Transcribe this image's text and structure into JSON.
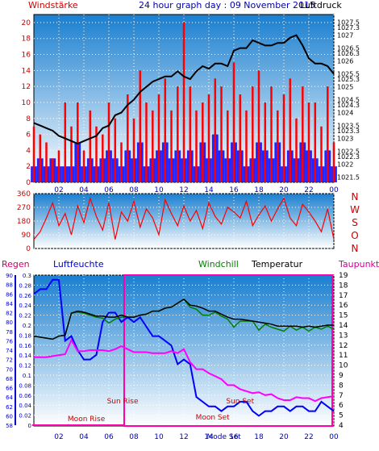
{
  "header": {
    "left_label": "Windstärke",
    "center_title": "24 hour graph day : 09 November 2015",
    "right_label": "Luftdruck"
  },
  "colors": {
    "title_blue": "#0000aa",
    "title_red": "#cc0000",
    "wind_red": "#ff0000",
    "gust_blue": "#0000ff",
    "pressure_black": "#000000",
    "humidity_blue": "#0000ff",
    "dewpoint_magenta": "#ff00ff",
    "windchill_green": "#008000",
    "sun_markers": "#cc0000",
    "frame_magenta": "#ff00aa",
    "plot_gradient_top": "#1a7fd0",
    "plot_gradient_bottom": "#ffffff"
  },
  "x_ticks": [
    "02",
    "04",
    "06",
    "08",
    "10",
    "12",
    "14",
    "16",
    "18",
    "20",
    "22",
    "00"
  ],
  "chart_data": [
    {
      "type": "bar",
      "title": "24 hour graph day : 09 November 2015",
      "ylabel_left": "Windstärke",
      "ylabel_right": "Luftdruck",
      "ylim_left": [
        0,
        21
      ],
      "yticks_left": [
        "0",
        "2",
        "4",
        "6",
        "8",
        "10",
        "12",
        "14",
        "16",
        "18",
        "20"
      ],
      "ylim_right": [
        1021.3,
        1027.8
      ],
      "yticks_right": [
        "1021.5",
        "1022",
        "1022.3",
        "1022.5",
        "1023",
        "1023.3",
        "1023.5",
        "1024",
        "1024.3",
        "1024.5",
        "1025",
        "1025.3",
        "1025.5",
        "1026",
        "1026.3",
        "1026.5",
        "1027",
        "1027.3",
        "1027.5"
      ],
      "x": [
        0,
        0.5,
        1,
        1.5,
        2,
        2.5,
        3,
        3.5,
        4,
        4.5,
        5,
        5.5,
        6,
        6.5,
        7,
        7.5,
        8,
        8.5,
        9,
        9.5,
        10,
        10.5,
        11,
        11.5,
        12,
        12.5,
        13,
        13.5,
        14,
        14.5,
        15,
        15.5,
        16,
        16.5,
        17,
        17.5,
        18,
        18.5,
        19,
        19.5,
        20,
        20.5,
        21,
        21.5,
        22,
        22.5,
        23,
        23.5,
        24
      ],
      "series": [
        {
          "role": "wind",
          "values": [
            7,
            6,
            5,
            3,
            4,
            10,
            7,
            10,
            4,
            9,
            7,
            6,
            10,
            8,
            5,
            11,
            8,
            14,
            10,
            9,
            11,
            13,
            9,
            12,
            20,
            12,
            9,
            10,
            11,
            13,
            12,
            9,
            15,
            11,
            9,
            12,
            14,
            10,
            12,
            9,
            11,
            13,
            8,
            12,
            10,
            10,
            7,
            12,
            5
          ]
        },
        {
          "role": "gust",
          "values": [
            2,
            3,
            2,
            3,
            2,
            2,
            2,
            5,
            2,
            3,
            2,
            3,
            4,
            3,
            2,
            4,
            3,
            5,
            2,
            3,
            4,
            5,
            3,
            4,
            3,
            4,
            2,
            5,
            3,
            6,
            4,
            3,
            5,
            4,
            2,
            3,
            5,
            4,
            3,
            5,
            2,
            4,
            3,
            5,
            4,
            3,
            2,
            4,
            2
          ]
        },
        {
          "role": "pressure",
          "values": [
            1023.6,
            1023.5,
            1023.4,
            1023.3,
            1023.1,
            1023.0,
            1022.9,
            1022.8,
            1022.9,
            1023.0,
            1023.1,
            1023.4,
            1023.5,
            1023.9,
            1024.0,
            1024.3,
            1024.5,
            1024.8,
            1025.0,
            1025.2,
            1025.3,
            1025.4,
            1025.4,
            1025.6,
            1025.4,
            1025.3,
            1025.6,
            1025.8,
            1025.7,
            1025.9,
            1025.9,
            1025.8,
            1026.4,
            1026.5,
            1026.5,
            1026.8,
            1026.7,
            1026.6,
            1026.6,
            1026.7,
            1026.7,
            1026.9,
            1027.0,
            1026.6,
            1026.1,
            1025.9,
            1025.9,
            1025.8,
            1025.5
          ]
        }
      ]
    },
    {
      "type": "scatter",
      "title": "",
      "ylim": [
        0,
        360
      ],
      "yticks": [
        "0",
        "90",
        "180",
        "270",
        "360"
      ],
      "direction_labels": [
        "N",
        "W",
        "S",
        "O",
        "N"
      ],
      "x": [
        0,
        0.5,
        1,
        1.5,
        2,
        2.5,
        3,
        3.5,
        4,
        4.5,
        5,
        5.5,
        6,
        6.5,
        7,
        7.5,
        8,
        8.5,
        9,
        9.5,
        10,
        10.5,
        11,
        11.5,
        12,
        12.5,
        13,
        13.5,
        14,
        14.5,
        15,
        15.5,
        16,
        16.5,
        17,
        17.5,
        18,
        18.5,
        19,
        19.5,
        20,
        20.5,
        21,
        21.5,
        22,
        22.5,
        23,
        23.5,
        24
      ],
      "series": [
        {
          "role": "direction",
          "values": [
            60,
            110,
            200,
            300,
            150,
            230,
            90,
            280,
            170,
            330,
            210,
            120,
            300,
            60,
            240,
            180,
            310,
            140,
            260,
            200,
            90,
            320,
            230,
            150,
            280,
            180,
            250,
            130,
            300,
            210,
            160,
            270,
            240,
            200,
            310,
            150,
            220,
            280,
            180,
            260,
            330,
            200,
            150,
            290,
            240,
            180,
            110,
            260,
            60
          ]
        }
      ]
    },
    {
      "type": "line",
      "title": "",
      "labels": {
        "regen": "Regen",
        "luftfeuchte": "Luftfeuchte",
        "windchill": "Windchill",
        "temperatur": "Temperatur",
        "taupunkt": "Taupunkt"
      },
      "ylim_rain": [
        0,
        0.3
      ],
      "yticks_rain": [
        "0",
        "0.02",
        "0.04",
        "0.06",
        "0.08",
        "0.1",
        "0.12",
        "0.14",
        "0.16",
        "0.18",
        "0.2",
        "0.22",
        "0.24",
        "0.26",
        "0.28",
        "0.3"
      ],
      "ylim_humidity": [
        58,
        90
      ],
      "yticks_humidity": [
        "58",
        "60",
        "62",
        "64",
        "66",
        "68",
        "70",
        "72",
        "74",
        "76",
        "78",
        "80",
        "82",
        "84",
        "86",
        "88",
        "90"
      ],
      "ylim_temp": [
        4,
        19
      ],
      "yticks_temp": [
        "4",
        "5",
        "6",
        "7",
        "8",
        "9",
        "10",
        "11",
        "12",
        "13",
        "14",
        "15",
        "16",
        "17",
        "18",
        "19"
      ],
      "x": [
        0,
        0.5,
        1,
        1.5,
        2,
        2.5,
        3,
        3.5,
        4,
        4.5,
        5,
        5.5,
        6,
        6.5,
        7,
        7.5,
        8,
        8.5,
        9,
        9.5,
        10,
        10.5,
        11,
        11.5,
        12,
        12.5,
        13,
        13.5,
        14,
        14.5,
        15,
        15.5,
        16,
        16.5,
        17,
        17.5,
        18,
        18.5,
        19,
        19.5,
        20,
        20.5,
        21,
        21.5,
        22,
        22.5,
        23,
        23.5,
        24
      ],
      "series": [
        {
          "role": "temperatur",
          "values": [
            12.9,
            12.8,
            12.7,
            12.6,
            12.9,
            13.0,
            15.2,
            15.4,
            15.3,
            15.1,
            14.9,
            14.9,
            14.8,
            14.8,
            15.0,
            14.8,
            14.8,
            15.0,
            15.1,
            15.4,
            15.4,
            15.7,
            15.8,
            16.2,
            16.6,
            16.0,
            15.9,
            15.7,
            15.4,
            15.4,
            15.1,
            14.8,
            14.6,
            14.6,
            14.5,
            14.4,
            14.3,
            14.2,
            14.1,
            13.9,
            13.9,
            13.9,
            13.9,
            13.8,
            13.9,
            13.8,
            13.9,
            14.0,
            14.0
          ]
        },
        {
          "role": "windchill",
          "values": [
            12.9,
            12.8,
            12.7,
            12.6,
            12.9,
            13.0,
            15.2,
            15.3,
            15.2,
            15.0,
            14.8,
            14.7,
            14.2,
            14.6,
            14.8,
            14.8,
            14.8,
            15.0,
            15.1,
            15.4,
            15.4,
            15.7,
            15.8,
            16.2,
            16.6,
            15.8,
            15.6,
            15.0,
            15.0,
            15.3,
            14.9,
            14.6,
            13.8,
            14.4,
            14.4,
            14.4,
            13.5,
            14.1,
            13.8,
            13.6,
            13.4,
            13.9,
            13.5,
            13.8,
            13.4,
            13.8,
            13.6,
            13.9,
            13.6
          ]
        },
        {
          "role": "taupunkt",
          "values": [
            10.8,
            10.8,
            10.8,
            10.9,
            11.0,
            11.1,
            12.5,
            11.4,
            11.4,
            11.5,
            11.5,
            11.5,
            11.4,
            11.6,
            11.9,
            11.6,
            11.3,
            11.3,
            11.3,
            11.2,
            11.2,
            11.2,
            11.4,
            11.2,
            11.6,
            10.3,
            9.6,
            9.6,
            9.2,
            8.9,
            8.6,
            8.0,
            8.0,
            7.6,
            7.4,
            7.2,
            7.3,
            7.0,
            7.1,
            6.7,
            6.5,
            6.5,
            6.8,
            6.7,
            6.7,
            6.4,
            6.7,
            6.8,
            6.9
          ]
        },
        {
          "role": "luftfeuchte",
          "values": [
            86,
            87,
            87,
            89,
            89,
            76,
            77,
            74,
            72,
            72,
            73,
            80,
            82,
            82,
            80,
            81,
            80,
            81,
            79,
            77,
            77,
            76,
            75,
            71,
            72,
            71,
            64,
            63,
            62,
            62,
            61,
            62,
            62,
            63,
            63,
            61,
            60,
            61,
            61,
            62,
            62,
            61,
            62,
            62,
            61,
            61,
            63,
            62,
            61
          ]
        }
      ],
      "events": [
        {
          "label": "Moon Rise",
          "hour": 4.2
        },
        {
          "label": "Sun Rise",
          "hour": 7.1
        },
        {
          "label": "Moon Set",
          "hour": 14.3
        },
        {
          "label": "Sun Set",
          "hour": 16.5
        },
        {
          "label": "Mode Set",
          "hour": 15.2
        }
      ],
      "rain_total": 0
    }
  ]
}
